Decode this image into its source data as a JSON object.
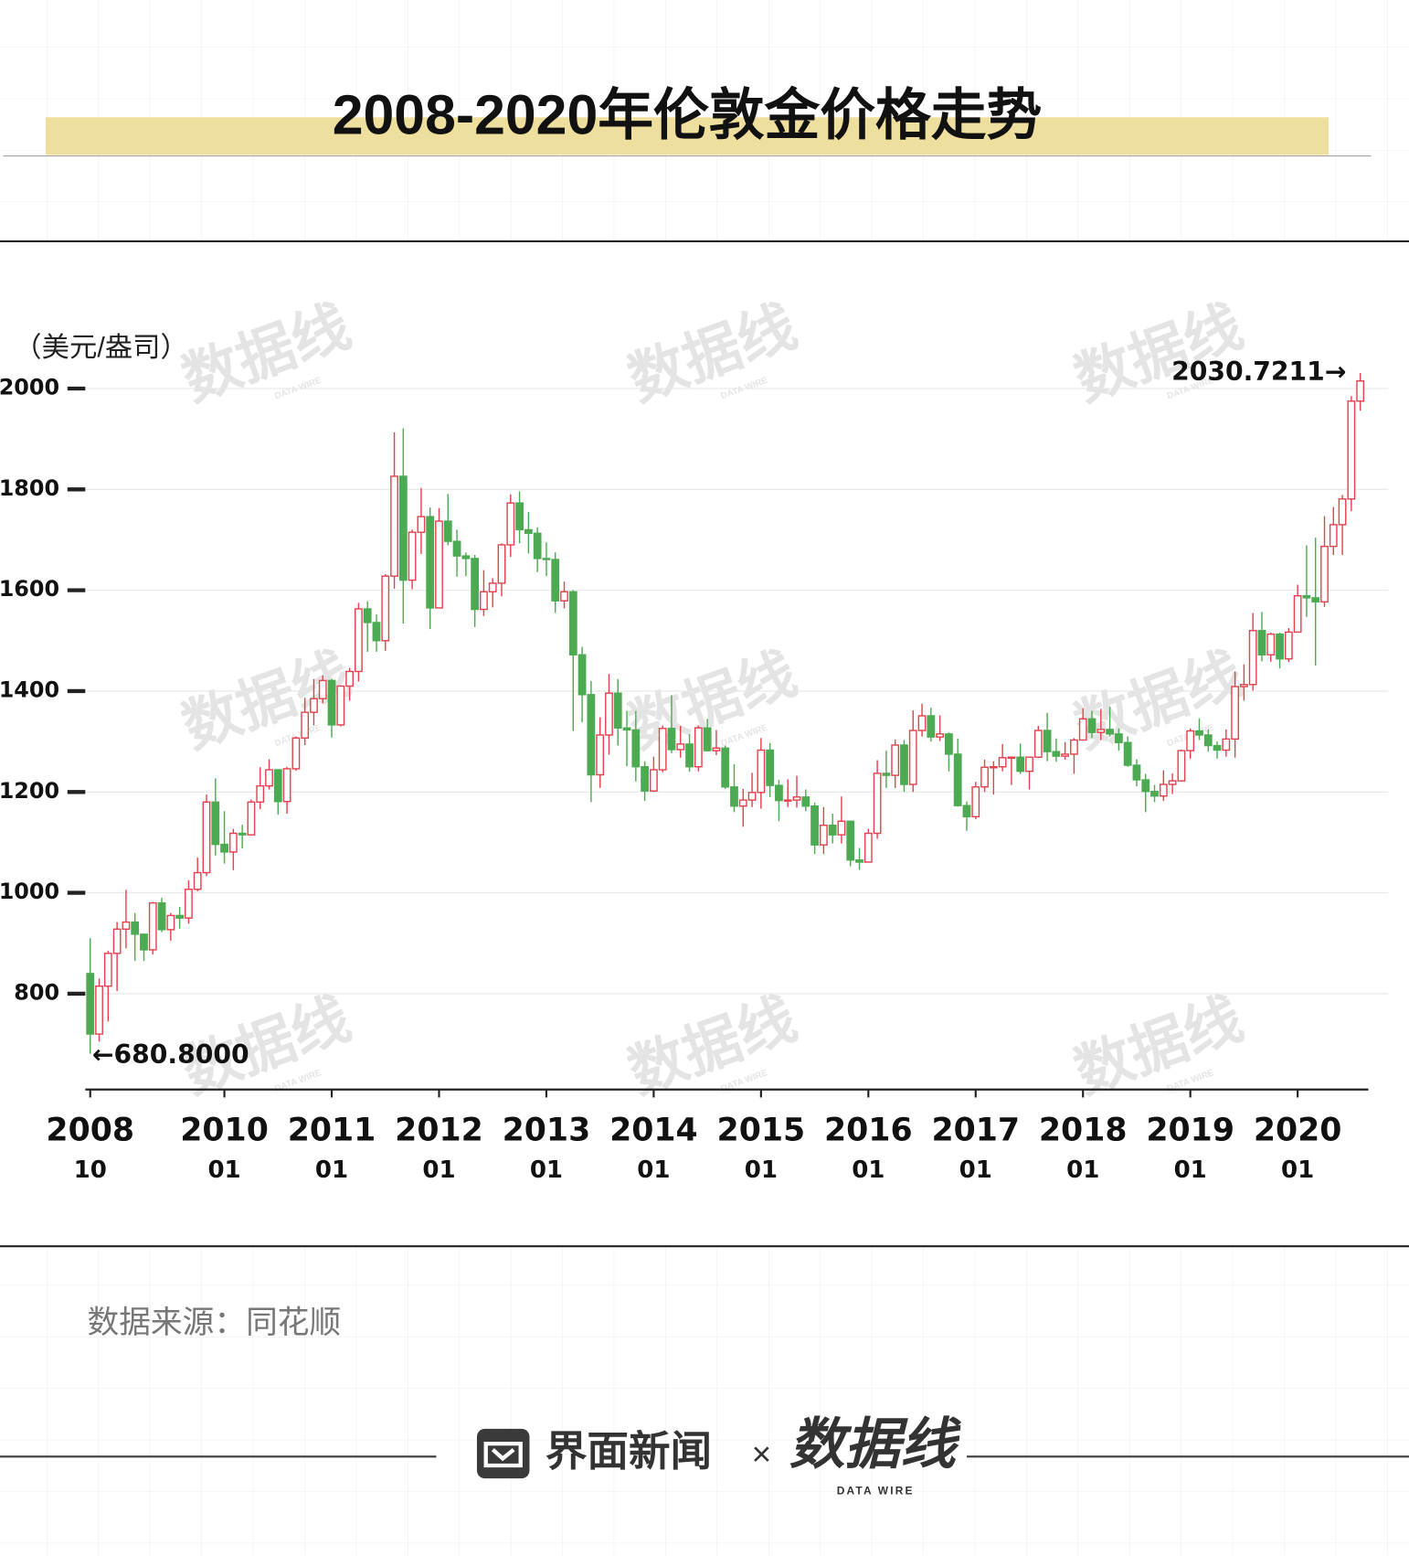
{
  "chart_data": {
    "type": "candlestick",
    "title": "2008-2020年伦敦金价格走势",
    "ylabel": "（美元/盎司）",
    "categories": [
      "2008-10",
      "2008-11",
      "2008-12",
      "2009-01",
      "2009-02",
      "2009-03",
      "2009-04",
      "2009-05",
      "2009-06",
      "2009-07",
      "2009-08",
      "2009-09",
      "2009-10",
      "2009-11",
      "2009-12",
      "2010-01",
      "2010-02",
      "2010-03",
      "2010-04",
      "2010-05",
      "2010-06",
      "2010-07",
      "2010-08",
      "2010-09",
      "2010-10",
      "2010-11",
      "2010-12",
      "2011-01",
      "2011-02",
      "2011-03",
      "2011-04",
      "2011-05",
      "2011-06",
      "2011-07",
      "2011-08",
      "2011-09",
      "2011-10",
      "2011-11",
      "2011-12",
      "2012-01",
      "2012-02",
      "2012-03",
      "2012-04",
      "2012-05",
      "2012-06",
      "2012-07",
      "2012-08",
      "2012-09",
      "2012-10",
      "2012-11",
      "2012-12",
      "2013-01",
      "2013-02",
      "2013-03",
      "2013-04",
      "2013-05",
      "2013-06",
      "2013-07",
      "2013-08",
      "2013-09",
      "2013-10",
      "2013-11",
      "2013-12",
      "2014-01",
      "2014-02",
      "2014-03",
      "2014-04",
      "2014-05",
      "2014-06",
      "2014-07",
      "2014-08",
      "2014-09",
      "2014-10",
      "2014-11",
      "2014-12",
      "2015-01",
      "2015-02",
      "2015-03",
      "2015-04",
      "2015-05",
      "2015-06",
      "2015-07",
      "2015-08",
      "2015-09",
      "2015-10",
      "2015-11",
      "2015-12",
      "2016-01",
      "2016-02",
      "2016-03",
      "2016-04",
      "2016-05",
      "2016-06",
      "2016-07",
      "2016-08",
      "2016-09",
      "2016-10",
      "2016-11",
      "2016-12",
      "2017-01",
      "2017-02",
      "2017-03",
      "2017-04",
      "2017-05",
      "2017-06",
      "2017-07",
      "2017-08",
      "2017-09",
      "2017-10",
      "2017-11",
      "2017-12",
      "2018-01",
      "2018-02",
      "2018-03",
      "2018-04",
      "2018-05",
      "2018-06",
      "2018-07",
      "2018-08",
      "2018-09",
      "2018-10",
      "2018-11",
      "2018-12",
      "2019-01",
      "2019-02",
      "2019-03",
      "2019-04",
      "2019-05",
      "2019-06",
      "2019-07",
      "2019-08",
      "2019-09",
      "2019-10",
      "2019-11",
      "2019-12",
      "2020-01",
      "2020-02",
      "2020-03",
      "2020-04",
      "2020-05",
      "2020-06",
      "2020-07",
      "2020-08"
    ],
    "open": [
      840,
      720,
      815,
      880,
      928,
      942,
      918,
      887,
      980,
      927,
      955,
      950,
      1007,
      1040,
      1180,
      1096,
      1081,
      1118,
      1115,
      1180,
      1212,
      1244,
      1181,
      1246,
      1307,
      1358,
      1385,
      1421,
      1333,
      1410,
      1439,
      1563,
      1536,
      1500,
      1628,
      1826,
      1620,
      1715,
      1746,
      1565,
      1737,
      1697,
      1668,
      1663,
      1562,
      1597,
      1614,
      1690,
      1773,
      1720,
      1713,
      1663,
      1661,
      1579,
      1597,
      1472,
      1393,
      1234,
      1313,
      1396,
      1327,
      1323,
      1250,
      1202,
      1244,
      1326,
      1284,
      1295,
      1250,
      1327,
      1282,
      1287,
      1210,
      1172,
      1184,
      1199,
      1283,
      1213,
      1183,
      1184,
      1190,
      1172,
      1095,
      1134,
      1115,
      1142,
      1065,
      1061,
      1118,
      1237,
      1233,
      1293,
      1215,
      1322,
      1351,
      1309,
      1315,
      1275,
      1173,
      1151,
      1210,
      1249,
      1250,
      1268,
      1269,
      1241,
      1269,
      1322,
      1280,
      1271,
      1275,
      1303,
      1345,
      1318,
      1324,
      1315,
      1298,
      1253,
      1224,
      1201,
      1192,
      1215,
      1222,
      1282,
      1321,
      1313,
      1292,
      1283,
      1305,
      1409,
      1413,
      1520,
      1472,
      1513,
      1464,
      1517,
      1589,
      1585,
      1577,
      1687,
      1730,
      1781,
      1975
    ],
    "high": [
      910,
      830,
      885,
      942,
      1006,
      960,
      917,
      982,
      990,
      960,
      972,
      1025,
      1070,
      1195,
      1227,
      1162,
      1127,
      1135,
      1185,
      1249,
      1265,
      1245,
      1250,
      1310,
      1387,
      1424,
      1431,
      1424,
      1411,
      1446,
      1575,
      1578,
      1552,
      1632,
      1913,
      1921,
      1720,
      1803,
      1764,
      1763,
      1791,
      1720,
      1675,
      1670,
      1640,
      1624,
      1693,
      1790,
      1796,
      1755,
      1725,
      1695,
      1675,
      1617,
      1600,
      1488,
      1420,
      1348,
      1434,
      1424,
      1361,
      1361,
      1261,
      1270,
      1332,
      1392,
      1331,
      1315,
      1332,
      1345,
      1323,
      1292,
      1255,
      1206,
      1238,
      1307,
      1297,
      1224,
      1225,
      1232,
      1205,
      1179,
      1170,
      1157,
      1191,
      1143,
      1089,
      1127,
      1263,
      1282,
      1304,
      1303,
      1362,
      1375,
      1367,
      1352,
      1318,
      1306,
      1181,
      1220,
      1264,
      1261,
      1295,
      1270,
      1296,
      1270,
      1331,
      1357,
      1306,
      1299,
      1307,
      1366,
      1361,
      1365,
      1369,
      1326,
      1310,
      1265,
      1236,
      1214,
      1243,
      1237,
      1284,
      1326,
      1346,
      1324,
      1300,
      1324,
      1439,
      1453,
      1555,
      1557,
      1516,
      1516,
      1525,
      1611,
      1689,
      1704,
      1747,
      1765,
      1789,
      1985,
      2030.7211
    ],
    "low": [
      680.8,
      705,
      745,
      805,
      890,
      865,
      865,
      878,
      922,
      905,
      929,
      939,
      1003,
      1033,
      1074,
      1058,
      1045,
      1088,
      1114,
      1166,
      1205,
      1155,
      1157,
      1242,
      1293,
      1332,
      1376,
      1308,
      1330,
      1381,
      1419,
      1478,
      1478,
      1480,
      1603,
      1534,
      1602,
      1672,
      1523,
      1564,
      1689,
      1627,
      1628,
      1527,
      1549,
      1566,
      1588,
      1666,
      1693,
      1673,
      1636,
      1628,
      1555,
      1564,
      1321,
      1338,
      1180,
      1208,
      1274,
      1292,
      1251,
      1221,
      1182,
      1200,
      1239,
      1277,
      1268,
      1240,
      1241,
      1280,
      1273,
      1206,
      1160,
      1131,
      1170,
      1167,
      1190,
      1142,
      1170,
      1169,
      1162,
      1077,
      1077,
      1098,
      1098,
      1053,
      1046,
      1061,
      1107,
      1208,
      1208,
      1200,
      1200,
      1310,
      1300,
      1301,
      1241,
      1171,
      1123,
      1146,
      1200,
      1195,
      1241,
      1214,
      1236,
      1205,
      1267,
      1261,
      1260,
      1264,
      1236,
      1302,
      1307,
      1303,
      1310,
      1282,
      1250,
      1211,
      1160,
      1180,
      1182,
      1196,
      1221,
      1266,
      1303,
      1280,
      1266,
      1270,
      1268,
      1381,
      1401,
      1459,
      1458,
      1445,
      1458,
      1517,
      1547,
      1451,
      1567,
      1670,
      1670,
      1757,
      1956
    ],
    "close": [
      720,
      815,
      880,
      928,
      942,
      918,
      887,
      980,
      927,
      955,
      950,
      1007,
      1040,
      1180,
      1096,
      1081,
      1118,
      1115,
      1180,
      1212,
      1244,
      1181,
      1246,
      1307,
      1358,
      1385,
      1421,
      1333,
      1410,
      1439,
      1563,
      1536,
      1500,
      1628,
      1826,
      1620,
      1715,
      1746,
      1565,
      1737,
      1697,
      1668,
      1663,
      1562,
      1597,
      1614,
      1690,
      1773,
      1720,
      1713,
      1663,
      1661,
      1579,
      1597,
      1472,
      1393,
      1234,
      1313,
      1396,
      1327,
      1323,
      1250,
      1202,
      1244,
      1326,
      1284,
      1295,
      1250,
      1327,
      1282,
      1287,
      1210,
      1172,
      1184,
      1199,
      1283,
      1213,
      1183,
      1184,
      1190,
      1172,
      1095,
      1134,
      1115,
      1142,
      1065,
      1061,
      1118,
      1237,
      1233,
      1293,
      1215,
      1322,
      1351,
      1309,
      1315,
      1275,
      1173,
      1151,
      1210,
      1249,
      1250,
      1268,
      1269,
      1241,
      1269,
      1322,
      1280,
      1271,
      1275,
      1303,
      1345,
      1318,
      1324,
      1315,
      1298,
      1253,
      1224,
      1201,
      1192,
      1215,
      1222,
      1282,
      1321,
      1313,
      1292,
      1283,
      1305,
      1409,
      1413,
      1520,
      1472,
      1513,
      1464,
      1517,
      1589,
      1585,
      1577,
      1687,
      1730,
      1781,
      1975,
      2015
    ],
    "up_color": "#e5404e",
    "down_color": "#4caa52",
    "ylim": [
      610,
      2050
    ],
    "yticks": [
      800,
      1000,
      1200,
      1400,
      1600,
      1800,
      2000
    ],
    "grid": true,
    "xticks": [
      {
        "value": "2008-10",
        "year": "2008",
        "month": "10"
      },
      {
        "value": "2010-01",
        "year": "2010",
        "month": "01"
      },
      {
        "value": "2011-01",
        "year": "2011",
        "month": "01"
      },
      {
        "value": "2012-01",
        "year": "2012",
        "month": "01"
      },
      {
        "value": "2013-01",
        "year": "2013",
        "month": "01"
      },
      {
        "value": "2014-01",
        "year": "2014",
        "month": "01"
      },
      {
        "value": "2015-01",
        "year": "2015",
        "month": "01"
      },
      {
        "value": "2016-01",
        "year": "2016",
        "month": "01"
      },
      {
        "value": "2017-01",
        "year": "2017",
        "month": "01"
      },
      {
        "value": "2018-01",
        "year": "2018",
        "month": "01"
      },
      {
        "value": "2019-01",
        "year": "2019",
        "month": "01"
      },
      {
        "value": "2020-01",
        "year": "2020",
        "month": "01"
      }
    ],
    "annotations": [
      {
        "x": "2020-08",
        "value": 2030.7211,
        "arrow": "→"
      },
      {
        "x": "2008-10",
        "value": 680.8,
        "label": "680.8000",
        "arrow": "←"
      }
    ]
  },
  "source": "数据来源：同花顺",
  "watermark": {
    "text": "数据线",
    "sub": "DATA WIRE"
  },
  "footer": {
    "brand": "界面新闻",
    "times": "×",
    "partner": "数据线",
    "partner_sub": "DATA WIRE"
  }
}
